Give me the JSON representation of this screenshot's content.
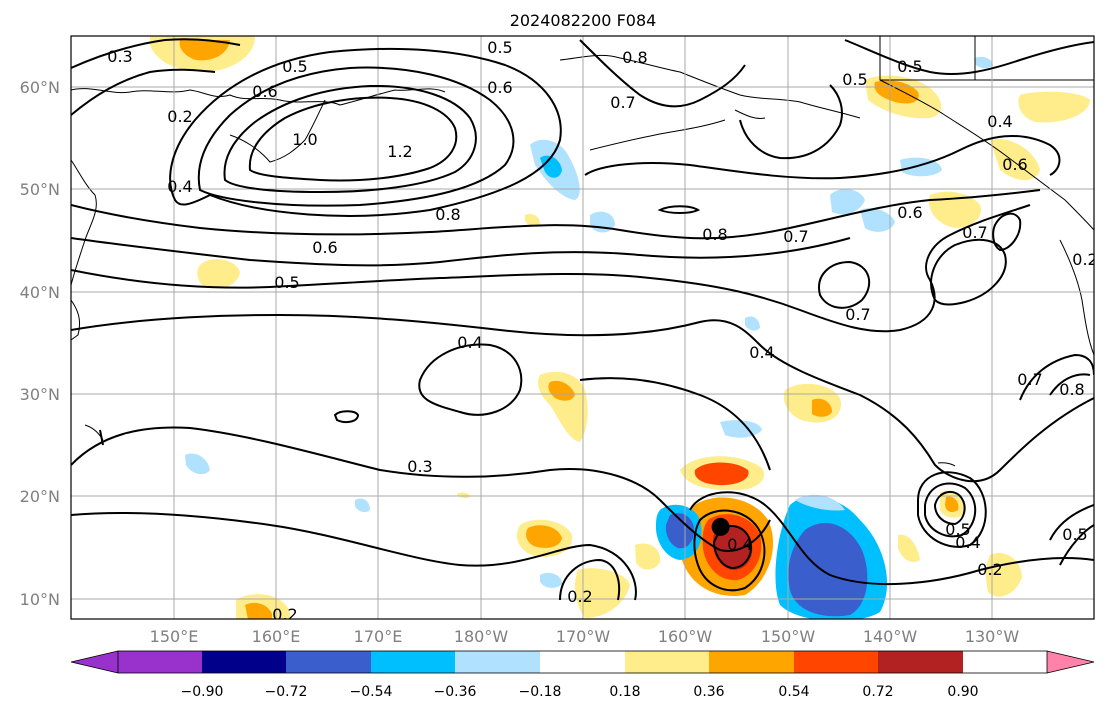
{
  "title": "2024082200 F084",
  "map": {
    "lon_ticks": [
      "150°E",
      "160°E",
      "170°E",
      "180°W",
      "170°W",
      "160°W",
      "150°W",
      "140°W",
      "130°W"
    ],
    "lat_ticks": [
      "60°N",
      "50°N",
      "40°N",
      "30°N",
      "20°N",
      "10°N"
    ],
    "storm_marker": {
      "lat": 17.0,
      "lon": -156.5
    }
  },
  "contours": {
    "labels": [
      "0.3",
      "0.2",
      "0.4",
      "0.5",
      "0.6",
      "0.8",
      "1.0",
      "1.2",
      "0.6",
      "0.5",
      "0.8",
      "0.7",
      "0.6",
      "0.7",
      "0.5",
      "0.5",
      "0.4",
      "0.6",
      "0.4",
      "0.7",
      "0.3",
      "0.2",
      "0.4",
      "0.5",
      "0.4",
      "0.2",
      "0.4",
      "0.5",
      "0.7",
      "0.8",
      "0.2",
      "0.2",
      "0.5",
      "0.8",
      "0.6",
      "0.7"
    ]
  },
  "colorbar": {
    "ticks": [
      "−0.90",
      "−0.72",
      "−0.54",
      "−0.36",
      "−0.18",
      "0.18",
      "0.36",
      "0.54",
      "0.72",
      "0.90"
    ],
    "colors": [
      "#9932cc",
      "#00008b",
      "#3a5fcd",
      "#00bfff",
      "#b0e2ff",
      "#ffffff",
      "#ffec8b",
      "#ffa500",
      "#ff4500",
      "#b22222",
      "#ff82ab"
    ]
  }
}
